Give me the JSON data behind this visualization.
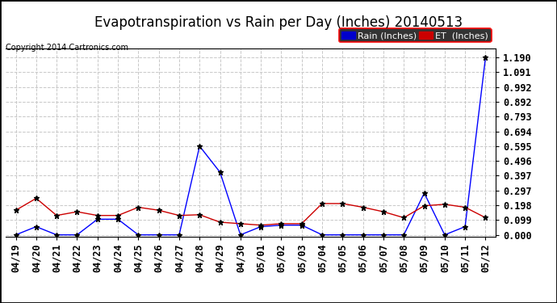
{
  "title": "Evapotranspiration vs Rain per Day (Inches) 20140513",
  "copyright": "Copyright 2014 Cartronics.com",
  "background_color": "#ffffff",
  "plot_background": "#ffffff",
  "grid_color": "#c8c8c8",
  "x_labels": [
    "04/19",
    "04/20",
    "04/21",
    "04/22",
    "04/23",
    "04/24",
    "04/25",
    "04/26",
    "04/27",
    "04/28",
    "04/29",
    "04/30",
    "05/01",
    "05/02",
    "05/03",
    "05/04",
    "05/05",
    "05/06",
    "05/07",
    "05/08",
    "05/09",
    "05/10",
    "05/11",
    "05/12"
  ],
  "rain_values": [
    0.0,
    0.055,
    0.0,
    0.0,
    0.105,
    0.105,
    0.0,
    0.0,
    0.0,
    0.595,
    0.42,
    0.0,
    0.055,
    0.065,
    0.065,
    0.0,
    0.0,
    0.0,
    0.0,
    0.0,
    0.28,
    0.0,
    0.055,
    1.19
  ],
  "et_values": [
    0.165,
    0.245,
    0.13,
    0.155,
    0.13,
    0.13,
    0.185,
    0.165,
    0.13,
    0.135,
    0.085,
    0.075,
    0.065,
    0.075,
    0.075,
    0.21,
    0.21,
    0.185,
    0.155,
    0.115,
    0.195,
    0.205,
    0.185,
    0.115
  ],
  "rain_color": "#0000ff",
  "et_color": "#cc0000",
  "marker": "*",
  "markersize": 5,
  "marker_color": "#000000",
  "linewidth": 1.0,
  "ylim_min": -0.01,
  "ylim_max": 1.25,
  "yticks": [
    0.0,
    0.099,
    0.198,
    0.297,
    0.397,
    0.496,
    0.595,
    0.694,
    0.793,
    0.892,
    0.992,
    1.091,
    1.19
  ],
  "legend_rain_bg": "#0000cc",
  "legend_et_bg": "#cc0000",
  "legend_rain_label": "Rain (Inches)",
  "legend_et_label": "ET  (Inches)",
  "title_fontsize": 12,
  "copyright_fontsize": 7,
  "tick_fontsize": 8.5,
  "legend_fontsize": 8,
  "border_color": "#000000"
}
